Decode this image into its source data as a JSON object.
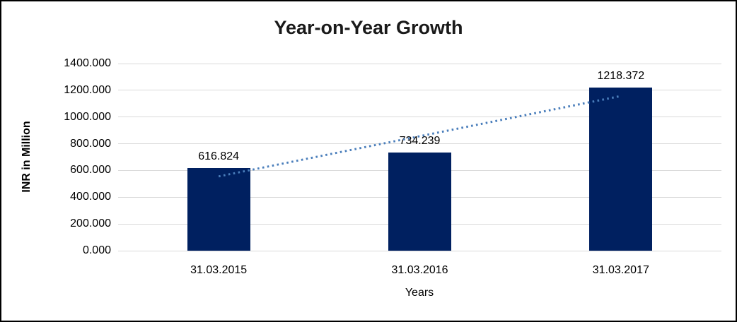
{
  "chart": {
    "legend_visible": false
  },
  "chart_data": {
    "type": "bar",
    "title": "Year-on-Year Growth",
    "categories": [
      "31.03.2015",
      "31.03.2016",
      "31.03.2017"
    ],
    "values": [
      616.824,
      734.239,
      1218.372
    ],
    "data_labels": [
      "616.824",
      "734.239",
      "1218.372"
    ],
    "xlabel": "Years",
    "ylabel": "INR in Million",
    "ylim": [
      0,
      1400
    ],
    "ytick_step": 200,
    "ytick_labels": [
      "0.000",
      "200.000",
      "400.000",
      "600.000",
      "800.000",
      "1000.000",
      "1200.000",
      "1400.000"
    ],
    "grid": true,
    "legend_position": "none",
    "trendline": {
      "type": "linear",
      "style": "dotted",
      "spans": "first-bar-center-to-last-bar-center"
    },
    "colors": {
      "bar": "#002060",
      "trendline": "#4A7EBB",
      "gridline": "#D9D9D9",
      "title_text": "#1a1a1a",
      "axis_text": "#000000",
      "background": "#FFFFFF",
      "border": "#000000"
    }
  }
}
